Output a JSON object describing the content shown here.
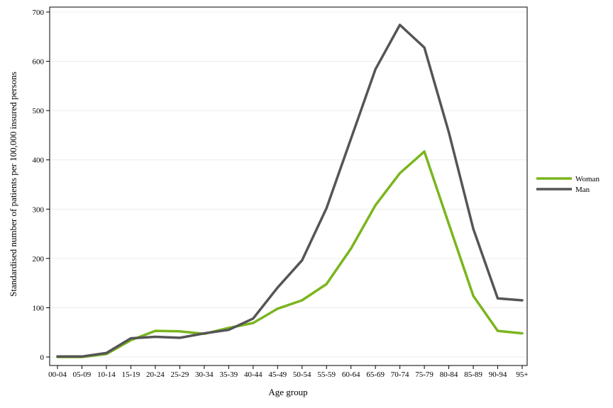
{
  "chart_data": {
    "type": "line",
    "title": "",
    "xlabel": "Age group",
    "ylabel": "Standardised number of patients per 100,000 insured persons",
    "categories": [
      "00-04",
      "05-09",
      "10-14",
      "15-19",
      "20-24",
      "25-29",
      "30-34",
      "35-39",
      "40-44",
      "45-49",
      "50-54",
      "55-59",
      "60-64",
      "65-69",
      "70-74",
      "75-79",
      "80-84",
      "85-89",
      "90-94",
      "95+"
    ],
    "ylim": [
      0,
      700
    ],
    "yticks": [
      0,
      100,
      200,
      300,
      400,
      500,
      600,
      700
    ],
    "grid": "horizontal",
    "legend_position": "right",
    "series": [
      {
        "name": "Woman",
        "color": "#7ab51d",
        "values": [
          0,
          0,
          6,
          34,
          53,
          52,
          47,
          59,
          69,
          98,
          115,
          148,
          220,
          308,
          373,
          417,
          270,
          124,
          53,
          48
        ]
      },
      {
        "name": "Man",
        "color": "#555555",
        "values": [
          1,
          1,
          8,
          38,
          41,
          39,
          48,
          55,
          78,
          141,
          196,
          302,
          443,
          584,
          674,
          628,
          456,
          260,
          119,
          115
        ]
      }
    ]
  }
}
